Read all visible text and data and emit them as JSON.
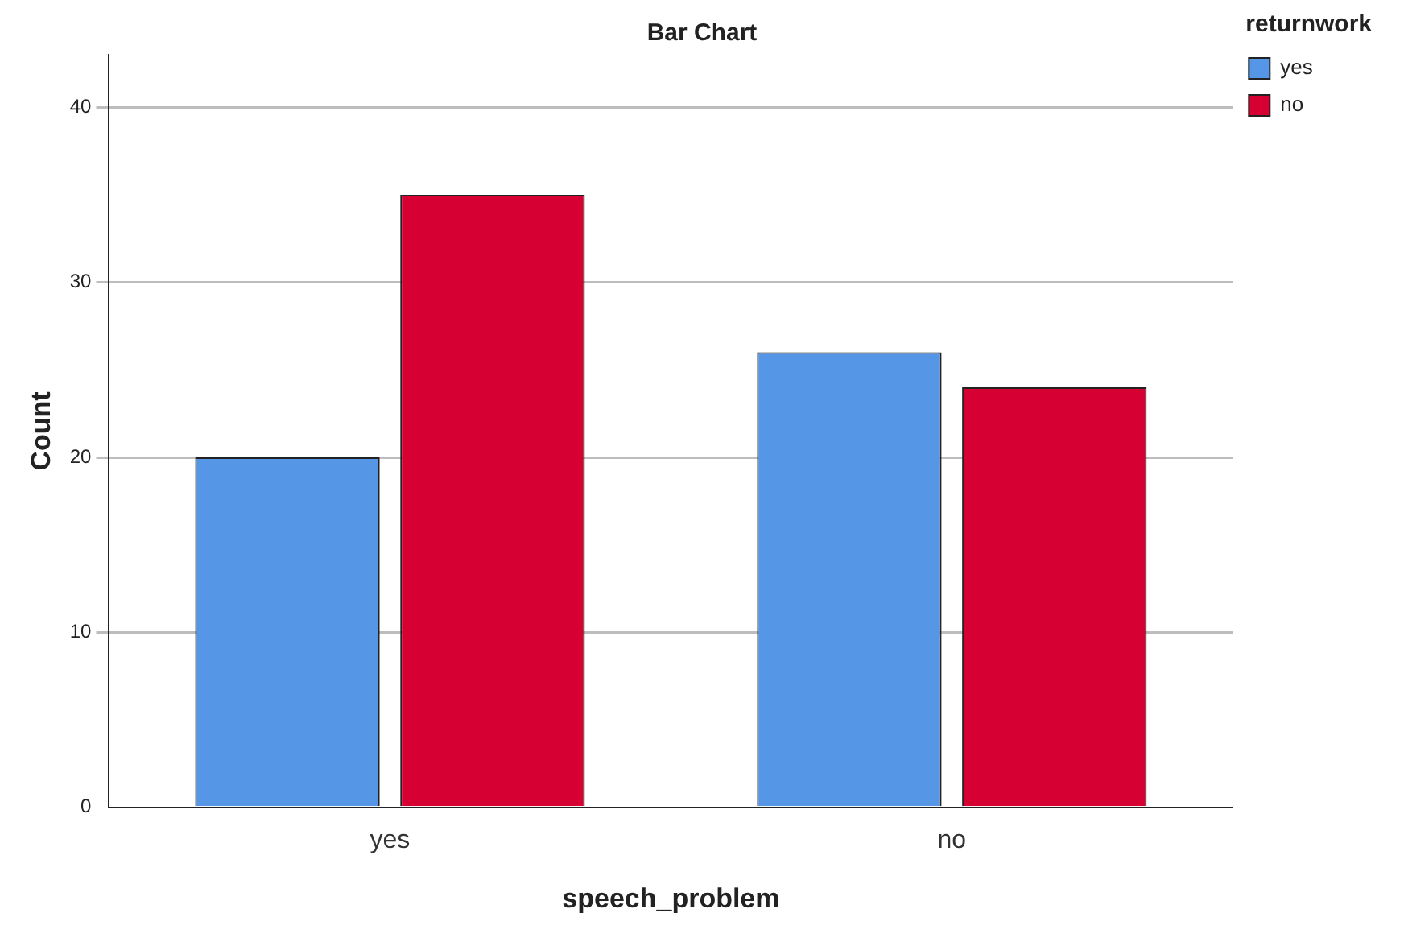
{
  "chart_data": {
    "type": "bar",
    "title": "Bar Chart",
    "xlabel": "speech_problem",
    "ylabel": "Count",
    "legend_title": "returnwork",
    "categories": [
      "yes",
      "no"
    ],
    "series": [
      {
        "name": "yes",
        "color": "#5596e6",
        "values": [
          20,
          26
        ]
      },
      {
        "name": "no",
        "color": "#d60032",
        "values": [
          35,
          24
        ]
      }
    ],
    "ylim": [
      0,
      43
    ],
    "yticks": [
      0,
      10,
      20,
      30,
      40
    ],
    "grid": "y",
    "legend": "top right"
  }
}
